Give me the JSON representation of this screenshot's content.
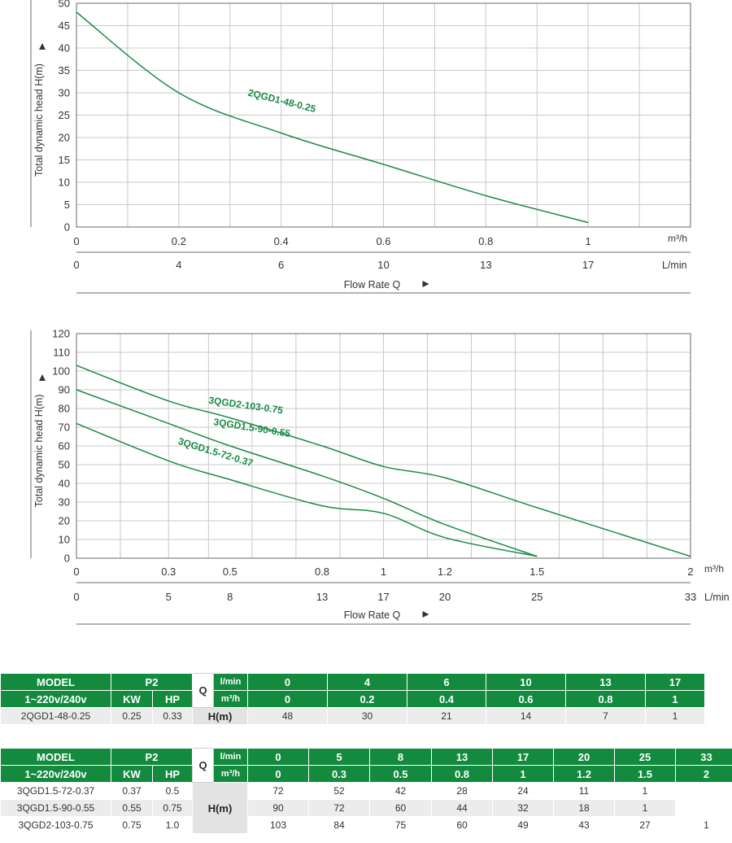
{
  "colors": {
    "curve": "#1a8a44",
    "grid": "#c8c8c8",
    "axis": "#6a6a6a",
    "header_green": "#138a3e",
    "row_grey": "#ececec"
  },
  "chart_data": [
    {
      "type": "line",
      "ylabel": "Total dynamic head H(m)",
      "xlabel": "Flow Rate Q",
      "x_unit_top": "m³/h",
      "x_unit_bottom": "L/min",
      "xlim": [
        0,
        1.2
      ],
      "ylim": [
        0,
        50
      ],
      "y_ticks": [
        0,
        5,
        10,
        15,
        20,
        25,
        30,
        35,
        40,
        45,
        50
      ],
      "x_ticks": [
        0,
        0.2,
        0.4,
        0.6,
        0.8,
        1
      ],
      "x_tick_labels": [
        "0",
        "0.2",
        "0.4",
        "0.6",
        "0.8",
        "1"
      ],
      "x2_tick_labels": [
        "0",
        "4",
        "6",
        "10",
        "13",
        "17"
      ],
      "x_grid": [
        0.1,
        0.2,
        0.3,
        0.4,
        0.5,
        0.6,
        0.7,
        0.8,
        0.9,
        1.0,
        1.1
      ],
      "grid": true,
      "series": [
        {
          "name": "2QGD1-48-0.25",
          "x": [
            0,
            0.2,
            0.4,
            0.6,
            0.8,
            1
          ],
          "y": [
            48,
            30,
            21,
            14,
            7,
            1
          ],
          "label_at": [
            0.4,
            27.5
          ],
          "label_angle": 14
        }
      ]
    },
    {
      "type": "line",
      "ylabel": "Total dynamic head H(m)",
      "xlabel": "Flow Rate Q",
      "x_unit_top": "m³/h",
      "x_unit_bottom": "L/min",
      "xlim": [
        0,
        2
      ],
      "ylim": [
        0,
        120
      ],
      "y_ticks": [
        0,
        10,
        20,
        30,
        40,
        50,
        60,
        70,
        80,
        90,
        100,
        110,
        120
      ],
      "x_ticks": [
        0,
        0.3,
        0.5,
        0.8,
        1,
        1.2,
        1.5,
        2
      ],
      "x_tick_labels": [
        "0",
        "0.3",
        "0.5",
        "0.8",
        "1",
        "1.2",
        "1.5",
        "2"
      ],
      "x2_tick_labels": [
        "0",
        "5",
        "8",
        "13",
        "17",
        "20",
        "25",
        "33"
      ],
      "x_grid": [
        0.143,
        0.3,
        0.43,
        0.572,
        0.715,
        0.858,
        1.0,
        1.143,
        1.286,
        1.429,
        1.572,
        1.715,
        1.858
      ],
      "grid": true,
      "series": [
        {
          "name": "3QGD2-103-0.75",
          "x": [
            0,
            0.3,
            0.5,
            0.8,
            1,
            1.2,
            1.5,
            2
          ],
          "y": [
            103,
            84,
            75,
            60,
            49,
            43,
            27,
            1
          ],
          "label_at": [
            0.55,
            80
          ],
          "label_angle": 8
        },
        {
          "name": "3QGD1.5-90-0.55",
          "x": [
            0,
            0.3,
            0.5,
            0.8,
            1,
            1.2,
            1.5
          ],
          "y": [
            90,
            72,
            60,
            44,
            32,
            18,
            1
          ],
          "label_at": [
            0.57,
            68
          ],
          "label_angle": 9
        },
        {
          "name": "3QGD1.5-72-0.37",
          "x": [
            0,
            0.3,
            0.5,
            0.8,
            1,
            1.2,
            1.5
          ],
          "y": [
            72,
            52,
            42,
            28,
            24,
            11,
            1
          ],
          "label_at": [
            0.45,
            55
          ],
          "label_angle": 17
        }
      ]
    }
  ],
  "table1": {
    "h_model": "MODEL",
    "h_p2": "P2",
    "h_q": "Q",
    "h_lmin": "l/min",
    "h_m3h": "m³/h",
    "h_voltage": "1~220v/240v",
    "h_kw": "KW",
    "h_hp": "HP",
    "lmin": [
      "0",
      "4",
      "6",
      "10",
      "13",
      "17"
    ],
    "m3h": [
      "0",
      "0.2",
      "0.4",
      "0.6",
      "0.8",
      "1"
    ],
    "h_label": "H(m)",
    "rows": [
      {
        "model": "2QGD1-48-0.25",
        "kw": "0.25",
        "hp": "0.33",
        "values": [
          "48",
          "30",
          "21",
          "14",
          "7",
          "1"
        ]
      }
    ]
  },
  "table2": {
    "h_model": "MODEL",
    "h_p2": "P2",
    "h_q": "Q",
    "h_lmin": "l/min",
    "h_m3h": "m³/h",
    "h_voltage": "1~220v/240v",
    "h_kw": "KW",
    "h_hp": "HP",
    "lmin": [
      "0",
      "5",
      "8",
      "13",
      "17",
      "20",
      "25",
      "33"
    ],
    "m3h": [
      "0",
      "0.3",
      "0.5",
      "0.8",
      "1",
      "1.2",
      "1.5",
      "2"
    ],
    "h_label": "H(m)",
    "rows": [
      {
        "model": "3QGD1.5-72-0.37",
        "kw": "0.37",
        "hp": "0.5",
        "values": [
          "72",
          "52",
          "42",
          "28",
          "24",
          "11",
          "1",
          ""
        ]
      },
      {
        "model": "3QGD1.5-90-0.55",
        "kw": "0.55",
        "hp": "0.75",
        "values": [
          "90",
          "72",
          "60",
          "44",
          "32",
          "18",
          "1",
          ""
        ]
      },
      {
        "model": "3QGD2-103-0.75",
        "kw": "0.75",
        "hp": "1.0",
        "values": [
          "103",
          "84",
          "75",
          "60",
          "49",
          "43",
          "27",
          "1"
        ]
      }
    ]
  }
}
